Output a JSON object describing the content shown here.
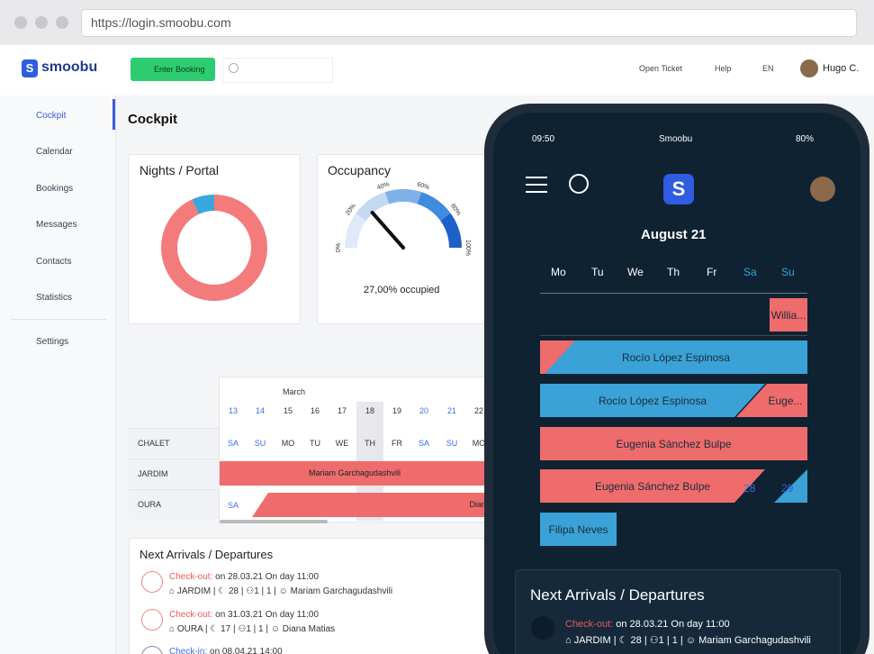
{
  "browser": {
    "url": "https://login.smoobu.com"
  },
  "header": {
    "logo": "smoobu",
    "enter_booking": "Enter Booking",
    "open_ticket": "Open Ticket",
    "help": "Help",
    "language": "EN",
    "user": "Hugo C."
  },
  "sidebar": [
    "Cockpit",
    "Calendar",
    "Bookings",
    "Messages",
    "Contacts",
    "Statistics",
    "Settings"
  ],
  "page_title": "Cockpit",
  "nights_portal": {
    "title": "Nights / Portal",
    "segments": [
      {
        "value": 93,
        "color": "#f47b7b"
      },
      {
        "value": 7,
        "color": "#3aa7dc"
      }
    ]
  },
  "occupancy": {
    "title": "Occupancy",
    "value": 27,
    "ticks": [
      "0%",
      "20%",
      "40%",
      "60%",
      "80%",
      "100%"
    ],
    "caption": "27,00% occupied"
  },
  "calendar": {
    "month": "March",
    "days": [
      "13",
      "14",
      "15",
      "16",
      "17",
      "18",
      "19",
      "20",
      "21",
      "22"
    ],
    "weekdays": [
      "SA",
      "SU",
      "MO",
      "TU",
      "WE",
      "TH",
      "FR",
      "SA",
      "SU",
      "MO"
    ],
    "units": [
      "CHALET",
      "JARDIM",
      "OURA"
    ],
    "bookings": [
      "Mariam Garchagudashvili",
      "Dian"
    ]
  },
  "arrivals": {
    "title": "Next Arrivals / Departures",
    "items": [
      {
        "status": "Check-out:",
        "when": "on 28.03.21 On day 11:00",
        "unit": "JARDIM",
        "nights": "28",
        "guests": "1",
        "children": "1",
        "name": "Mariam Garchagudashvili"
      },
      {
        "status": "Check-out:",
        "when": "on 31.03.21 On day 11:00",
        "unit": "OURA",
        "nights": "17",
        "guests": "1",
        "children": "1",
        "name": "Diana Matias"
      },
      {
        "status": "Check-in:",
        "when": "on 08.04.21 14:00"
      }
    ]
  },
  "phone": {
    "time": "09:50",
    "app": "Smoobu",
    "battery": "80%",
    "month": "August 21",
    "weekdays": [
      "Mo",
      "Tu",
      "We",
      "Th",
      "Fr",
      "Sa",
      "Su"
    ],
    "bookings": [
      "Willia...",
      "Rocío López Espinosa",
      "Rocío López Espinosa",
      "Euge...",
      "Eugenia Sánchez Bulpe",
      "Eugenia Sánchez Bulpe",
      "28",
      "29",
      "Filipa Neves"
    ],
    "arrivals": {
      "title": "Next Arrivals / Departures",
      "status": "Check-out:",
      "when": "on 28.03.21 On day 11:00",
      "unit": "JARDIM",
      "nights": "28",
      "guests": "1",
      "children": "1",
      "name": "Mariam Garchagudashvili"
    }
  }
}
